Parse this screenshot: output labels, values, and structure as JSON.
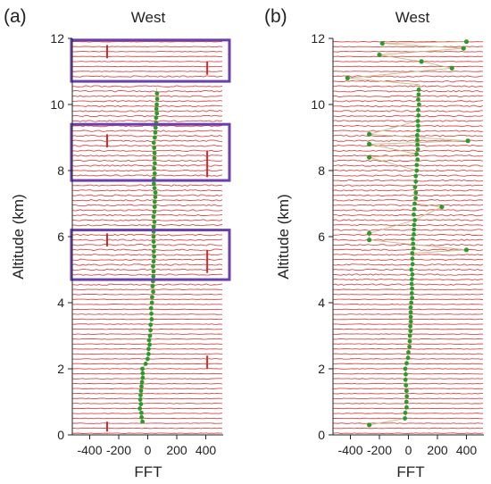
{
  "colors": {
    "trace": "#d42a2a",
    "peak": "#2e9a2e",
    "peak_line": "#c9b98a",
    "highlight_box": "#6a3fb0",
    "axis": "#222222"
  },
  "chart_data": [
    {
      "type": "line",
      "panel_label": "(a)",
      "title": "West",
      "xlabel": "FFT",
      "ylabel": "Altitude (km)",
      "xlim": [
        -520,
        520
      ],
      "ylim": [
        0,
        12
      ],
      "xticks": [
        -400,
        -200,
        0,
        200,
        400
      ],
      "yticks": [
        0,
        2,
        4,
        6,
        8,
        10,
        12
      ],
      "grid": false,
      "trace_spacing_km": 0.15,
      "highlight_bands_km": [
        [
          10.7,
          11.95
        ],
        [
          7.7,
          9.4
        ],
        [
          4.7,
          6.2
        ]
      ],
      "peak_profile": [
        {
          "alt": 0.4,
          "x": -40
        },
        {
          "alt": 0.8,
          "x": -50
        },
        {
          "alt": 1.2,
          "x": -48
        },
        {
          "alt": 1.6,
          "x": -40
        },
        {
          "alt": 2.0,
          "x": -35
        },
        {
          "alt": 2.3,
          "x": 0
        },
        {
          "alt": 2.6,
          "x": 5
        },
        {
          "alt": 3.0,
          "x": 15
        },
        {
          "alt": 3.5,
          "x": 22
        },
        {
          "alt": 4.0,
          "x": 30
        },
        {
          "alt": 4.5,
          "x": 35
        },
        {
          "alt": 5.7,
          "x": 40
        },
        {
          "alt": 6.0,
          "x": 45
        },
        {
          "alt": 6.6,
          "x": 45
        },
        {
          "alt": 7.2,
          "x": 50
        },
        {
          "alt": 7.6,
          "x": 45
        },
        {
          "alt": 9.0,
          "x": 45
        },
        {
          "alt": 9.6,
          "x": 60
        },
        {
          "alt": 10.0,
          "x": 65
        },
        {
          "alt": 10.5,
          "x": 62
        }
      ],
      "spikes": [
        {
          "x": -280,
          "alt_range": [
            11.4,
            11.8
          ]
        },
        {
          "x": -280,
          "alt_range": [
            8.7,
            9.1
          ]
        },
        {
          "x": -280,
          "alt_range": [
            5.7,
            6.1
          ]
        },
        {
          "x": -280,
          "alt_range": [
            0.1,
            0.4
          ]
        },
        {
          "x": 410,
          "alt_range": [
            10.9,
            11.3
          ]
        },
        {
          "x": 410,
          "alt_range": [
            7.8,
            8.6
          ]
        },
        {
          "x": 410,
          "alt_range": [
            4.9,
            5.6
          ]
        },
        {
          "x": 410,
          "alt_range": [
            2.0,
            2.4
          ]
        }
      ]
    },
    {
      "type": "line",
      "panel_label": "(b)",
      "title": "West",
      "xlabel": "FFT",
      "ylabel": "Altitude (km)",
      "xlim": [
        -520,
        520
      ],
      "ylim": [
        0,
        12
      ],
      "xticks": [
        -400,
        -200,
        0,
        200,
        400
      ],
      "yticks": [
        0,
        2,
        4,
        6,
        8,
        10,
        12
      ],
      "grid": false,
      "trace_spacing_km": 0.15,
      "peak_profile": [
        {
          "alt": 0.5,
          "x": -20
        },
        {
          "alt": 1.0,
          "x": -15
        },
        {
          "alt": 1.5,
          "x": -15
        },
        {
          "alt": 2.0,
          "x": -20
        },
        {
          "alt": 2.5,
          "x": 0
        },
        {
          "alt": 3.0,
          "x": 10
        },
        {
          "alt": 4.0,
          "x": 20
        },
        {
          "alt": 5.0,
          "x": 25
        },
        {
          "alt": 5.5,
          "x": 30
        },
        {
          "alt": 6.5,
          "x": 40
        },
        {
          "alt": 7.0,
          "x": 45
        },
        {
          "alt": 7.5,
          "x": 50
        },
        {
          "alt": 8.0,
          "x": 55
        },
        {
          "alt": 8.5,
          "x": 60
        },
        {
          "alt": 9.5,
          "x": 65
        },
        {
          "alt": 10.0,
          "x": 70
        },
        {
          "alt": 10.6,
          "x": 75
        }
      ],
      "outliers": [
        {
          "alt": 0.3,
          "x": -270
        },
        {
          "alt": 5.6,
          "x": 400
        },
        {
          "alt": 5.9,
          "x": -270
        },
        {
          "alt": 6.1,
          "x": -270
        },
        {
          "alt": 6.9,
          "x": 230
        },
        {
          "alt": 8.4,
          "x": -270
        },
        {
          "alt": 8.8,
          "x": -270
        },
        {
          "alt": 8.9,
          "x": 410
        },
        {
          "alt": 9.1,
          "x": -270
        },
        {
          "alt": 10.8,
          "x": -420
        },
        {
          "alt": 11.1,
          "x": 300
        },
        {
          "alt": 11.3,
          "x": 90
        },
        {
          "alt": 11.5,
          "x": -200
        },
        {
          "alt": 11.7,
          "x": 380
        },
        {
          "alt": 11.85,
          "x": -180
        },
        {
          "alt": 11.9,
          "x": 400
        }
      ]
    }
  ]
}
